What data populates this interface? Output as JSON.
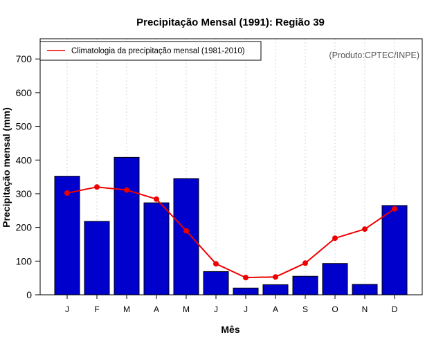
{
  "chart_data": {
    "type": "bar",
    "title": "Precipitação Mensal (1991): Região 39",
    "xlabel": "Mês",
    "ylabel": "Precipitação mensal (mm)",
    "ylim": [
      0,
      760
    ],
    "yticks": [
      0,
      100,
      200,
      300,
      400,
      500,
      600,
      700
    ],
    "categories": [
      "J",
      "F",
      "M",
      "A",
      "M",
      "J",
      "J",
      "A",
      "S",
      "O",
      "N",
      "D"
    ],
    "series": [
      {
        "name": "Precipitação mensal (1991)",
        "type": "bar",
        "color": "#0000cc",
        "values": [
          352,
          218,
          408,
          273,
          345,
          69,
          20,
          30,
          55,
          93,
          31,
          265
        ]
      },
      {
        "name": "Climatologia da precipitação mensal (1981-2010)",
        "type": "line",
        "color": "#ee0000",
        "values": [
          302,
          320,
          311,
          284,
          190,
          92,
          51,
          53,
          94,
          168,
          195,
          255
        ]
      }
    ],
    "legend": {
      "placement": "top-left",
      "entries": [
        "Climatologia da precipitação mensal (1981-2010)"
      ]
    },
    "annotation": "(Produto:CPTEC/INPE)",
    "grid": "vertical dotted"
  }
}
